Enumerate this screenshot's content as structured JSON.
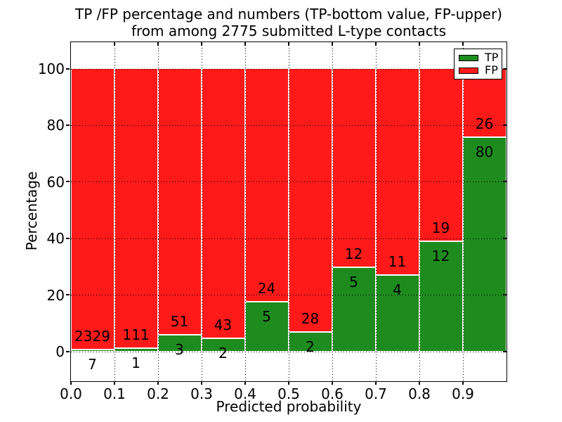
{
  "title": {
    "line1": "TP /FP percentage and numbers (TP-bottom value, FP-upper)",
    "line2": "from among 2775 submitted L-type contacts"
  },
  "chart_data": {
    "type": "bar",
    "stacked": true,
    "normalization": "percent-of-bin-total",
    "title": "TP /FP percentage and numbers (TP-bottom value, FP-upper) from among 2775 submitted L-type contacts",
    "xlabel": "Predicted probability",
    "ylabel": "Percentage",
    "total_submitted_contacts": 2775,
    "bin_edges": [
      0.0,
      0.1,
      0.2,
      0.3,
      0.4,
      0.5,
      0.6,
      0.7,
      0.8,
      0.9,
      1.0
    ],
    "series": [
      {
        "name": "TP",
        "color": "#1e8b1e",
        "counts": [
          7,
          1,
          3,
          2,
          5,
          2,
          5,
          4,
          12,
          80
        ]
      },
      {
        "name": "FP",
        "color": "#ff1a1a",
        "counts": [
          2329,
          111,
          51,
          43,
          24,
          28,
          12,
          11,
          19,
          26
        ]
      }
    ],
    "tp_percent_of_bin": [
      0.3,
      0.89,
      5.56,
      4.44,
      17.24,
      6.67,
      29.41,
      26.67,
      38.71,
      75.47
    ],
    "xtick_labels": [
      "0.0",
      "0.1",
      "0.2",
      "0.3",
      "0.4",
      "0.5",
      "0.6",
      "0.7",
      "0.8",
      "0.9"
    ],
    "ytick_values": [
      0,
      20,
      40,
      60,
      80,
      100
    ],
    "xlim": [
      0.0,
      1.0
    ],
    "ylim": [
      -10.5,
      109.5
    ],
    "grid": "dotted",
    "legend": {
      "position": "upper right",
      "entries": [
        "TP",
        "FP"
      ]
    }
  },
  "colors": {
    "tp_green": "#1e8b1e",
    "fp_red": "#ff1a1a",
    "grid": "#000000",
    "frame": "#000000",
    "background": "#ffffff",
    "text": "#000000"
  }
}
